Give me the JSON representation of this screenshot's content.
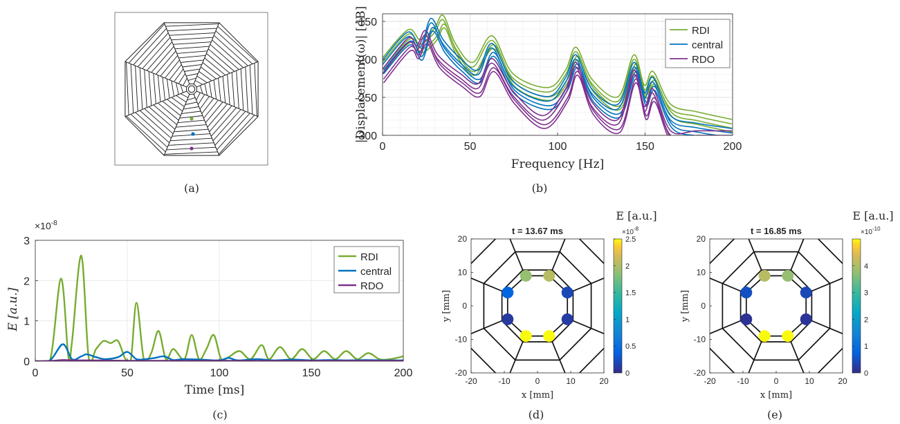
{
  "colors": {
    "RDI": "#77ac30",
    "central": "#0072bd",
    "RDO": "#7e2f8e",
    "node_orange": "#f2a93b",
    "node_blue": "#3d5ef2",
    "node_yellow": "#f9e51f"
  },
  "panels": {
    "a": {
      "label": "(a)"
    },
    "b": {
      "label": "(b)"
    },
    "c": {
      "label": "(c)"
    },
    "d": {
      "label": "(d)"
    },
    "e": {
      "label": "(e)"
    }
  },
  "chart_data": [
    {
      "panel": "a",
      "type": "diagram",
      "description_marks": [
        "RDI",
        "central",
        "RDO"
      ]
    },
    {
      "panel": "b",
      "type": "line",
      "xlabel": "Frequency [Hz]",
      "ylabel": "|Displacement(ω)| [dB]",
      "xlim": [
        0,
        200
      ],
      "ylim": [
        -300,
        -140
      ],
      "xticks": [
        "0",
        "50",
        "100",
        "150",
        "200"
      ],
      "yticks": [
        "-150",
        "-200",
        "-250",
        "-300"
      ],
      "grid": true,
      "legend": "top-right",
      "series": [
        {
          "name": "RDI",
          "x": [
            0,
            15,
            22,
            30,
            35,
            42,
            52,
            63,
            75,
            95,
            105,
            111,
            120,
            135,
            144,
            150,
            155,
            165,
            180,
            200
          ],
          "y": [
            -205,
            -167,
            -180,
            -165,
            -148,
            -185,
            -210,
            -175,
            -225,
            -243,
            -220,
            -190,
            -232,
            -255,
            -200,
            -240,
            -222,
            -265,
            -275,
            -285
          ]
        },
        {
          "name": "central",
          "x": [
            0,
            15,
            22,
            28,
            35,
            45,
            55,
            63,
            75,
            95,
            105,
            111,
            120,
            135,
            144,
            150,
            155,
            165,
            180,
            200
          ],
          "y": [
            -208,
            -170,
            -190,
            -152,
            -180,
            -205,
            -220,
            -185,
            -235,
            -255,
            -230,
            -200,
            -245,
            -265,
            -210,
            -250,
            -230,
            -280,
            -290,
            -297
          ]
        },
        {
          "name": "RDO",
          "x": [
            0,
            15,
            20,
            25,
            32,
            45,
            55,
            63,
            75,
            92,
            105,
            111,
            120,
            135,
            144,
            150,
            155,
            165,
            180,
            200
          ],
          "y": [
            -220,
            -178,
            -188,
            -168,
            -200,
            -225,
            -238,
            -205,
            -248,
            -280,
            -245,
            -210,
            -262,
            -285,
            -220,
            -268,
            -245,
            -300,
            -300,
            -300
          ]
        }
      ]
    },
    {
      "panel": "c",
      "type": "line",
      "xlabel": "Time [ms]",
      "ylabel": "E [a.u.]",
      "yexponent": "×10",
      "yexponent_power": "-8",
      "xlim": [
        0,
        200
      ],
      "ylim": [
        0,
        3
      ],
      "xticks": [
        "0",
        "50",
        "100",
        "150",
        "200"
      ],
      "yticks": [
        "0",
        "1",
        "2",
        "3"
      ],
      "grid": true,
      "legend": "top-right",
      "series": [
        {
          "name": "RDI",
          "x": [
            0,
            8,
            14,
            18,
            20,
            25,
            29,
            33,
            37,
            41,
            45,
            49,
            52,
            55,
            59,
            63,
            67,
            71,
            75,
            81,
            85,
            89,
            93,
            97,
            101,
            105,
            111,
            117,
            123,
            127,
            133,
            139,
            145,
            151,
            157,
            163,
            169,
            175,
            181,
            187,
            193,
            200
          ],
          "y": [
            0,
            0.02,
            2.05,
            0.1,
            0.5,
            2.62,
            0.1,
            0.3,
            0.5,
            0.45,
            0.5,
            0.05,
            0.05,
            1.45,
            0.05,
            0.2,
            0.75,
            0.05,
            0.3,
            0.05,
            0.65,
            0.05,
            0.3,
            0.65,
            0.05,
            0.1,
            0.25,
            0.05,
            0.4,
            0.05,
            0.35,
            0.05,
            0.3,
            0.05,
            0.25,
            0.05,
            0.25,
            0.05,
            0.2,
            0.05,
            0.05,
            0.12
          ]
        },
        {
          "name": "central",
          "x": [
            0,
            8,
            15,
            20,
            25,
            28,
            33,
            38,
            45,
            50,
            55,
            60,
            65,
            70,
            75,
            80,
            90,
            100,
            105,
            110,
            120,
            130,
            140,
            150,
            160,
            170,
            180,
            190,
            200
          ],
          "y": [
            0,
            0.02,
            0.42,
            0.05,
            0.12,
            0.17,
            0.1,
            0.05,
            0.1,
            0.23,
            0.05,
            0.05,
            0.08,
            0.12,
            0.03,
            0.05,
            0.04,
            0.02,
            0.08,
            0.02,
            0.05,
            0.02,
            0.04,
            0.02,
            0.03,
            0.02,
            0.03,
            0.02,
            0.02
          ]
        },
        {
          "name": "RDO",
          "x": [
            0,
            10,
            15,
            20,
            30,
            50,
            100,
            150,
            200
          ],
          "y": [
            0,
            0.01,
            0.03,
            0.02,
            0.02,
            0.01,
            0.01,
            0.01,
            0.01
          ]
        }
      ]
    },
    {
      "panel": "d",
      "type": "scatter",
      "title": "t = 13.67 ms",
      "xlabel": "x [mm]",
      "ylabel": "y [mm]",
      "xlim": [
        -20,
        20
      ],
      "ylim": [
        -20,
        20
      ],
      "xticks": [
        "-20",
        "-10",
        "0",
        "10",
        "20"
      ],
      "yticks": [
        "20",
        "10",
        "0",
        "-10",
        "-20"
      ],
      "colorbar_label": "E [a.u.]",
      "colorbar_exponent": "×10",
      "colorbar_exponent_power": "-8",
      "colorbar_ticks": [
        "2.5",
        "2",
        "1.5",
        "1",
        "0.5",
        "0"
      ],
      "colorbar_range": [
        0,
        2.5
      ],
      "points": [
        {
          "x": -3.5,
          "y": 9,
          "value": 1.9
        },
        {
          "x": 3.5,
          "y": 9,
          "value": 2.05
        },
        {
          "x": -9,
          "y": 4,
          "value": 0.4
        },
        {
          "x": 9,
          "y": 4,
          "value": 0.2
        },
        {
          "x": -9,
          "y": -4,
          "value": 0.1
        },
        {
          "x": 9,
          "y": -4,
          "value": 0.12
        },
        {
          "x": -3.5,
          "y": -9,
          "value": 2.5
        },
        {
          "x": 3.5,
          "y": -9,
          "value": 2.5
        }
      ]
    },
    {
      "panel": "e",
      "type": "scatter",
      "title": "t = 16.85 ms",
      "xlabel": "x [mm]",
      "ylabel": "y [mm]",
      "xlim": [
        -20,
        20
      ],
      "ylim": [
        -20,
        20
      ],
      "xticks": [
        "-20",
        "-10",
        "0",
        "10",
        "20"
      ],
      "yticks": [
        "20",
        "10",
        "0",
        "-10",
        "-20"
      ],
      "colorbar_label": "E [a.u.]",
      "colorbar_exponent": "×10",
      "colorbar_exponent_power": "-10",
      "colorbar_ticks": [
        "4",
        "3",
        "2",
        "1",
        "0"
      ],
      "colorbar_range": [
        0,
        5
      ],
      "points": [
        {
          "x": -3.5,
          "y": 9,
          "value": 4.1
        },
        {
          "x": 3.5,
          "y": 9,
          "value": 3.8
        },
        {
          "x": -9,
          "y": 4,
          "value": 0.5
        },
        {
          "x": 9,
          "y": 4,
          "value": 0.4
        },
        {
          "x": -9,
          "y": -4,
          "value": 0.1
        },
        {
          "x": 9,
          "y": -4,
          "value": 0.15
        },
        {
          "x": -3.5,
          "y": -9,
          "value": 5.0
        },
        {
          "x": 3.5,
          "y": -9,
          "value": 5.0
        }
      ]
    }
  ]
}
